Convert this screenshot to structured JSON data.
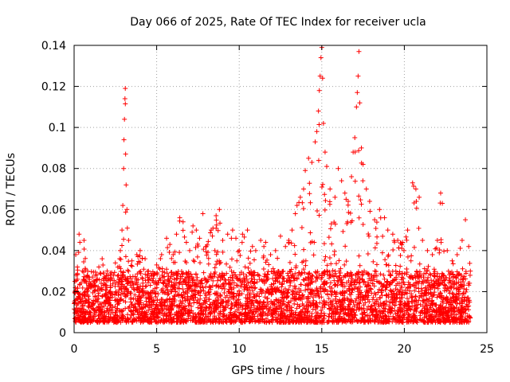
{
  "chart_data": {
    "type": "scatter",
    "title": "Day 066 of 2025, Rate Of TEC Index for receiver ucla",
    "xlabel": "GPS time / hours",
    "ylabel": "ROTI / TECUs",
    "xlim": [
      0,
      25
    ],
    "ylim": [
      0,
      0.14
    ],
    "xticks": [
      0,
      5,
      10,
      15,
      20,
      25
    ],
    "xtick_labels": [
      "0",
      "5",
      "10",
      "15",
      "20",
      "25"
    ],
    "yticks": [
      0,
      0.02,
      0.04,
      0.06,
      0.08,
      0.1,
      0.12,
      0.14
    ],
    "ytick_labels": [
      "0",
      "0.02",
      "0.04",
      "0.06",
      "0.08",
      "0.1",
      "0.12",
      "0.14"
    ],
    "grid": true,
    "marker": "+",
    "color": "#ff0000",
    "series": [
      {
        "name": "ROTI",
        "points": [
          [
            0.05,
            0.025
          ],
          [
            0.1,
            0.038
          ],
          [
            0.2,
            0.032
          ],
          [
            0.3,
            0.048
          ],
          [
            0.35,
            0.044
          ],
          [
            0.5,
            0.03
          ],
          [
            0.6,
            0.045
          ],
          [
            0.8,
            0.028
          ],
          [
            1.0,
            0.022
          ],
          [
            1.2,
            0.025
          ],
          [
            1.5,
            0.032
          ],
          [
            1.7,
            0.036
          ],
          [
            2.0,
            0.03
          ],
          [
            2.2,
            0.028
          ],
          [
            2.5,
            0.034
          ],
          [
            2.8,
            0.04
          ],
          [
            2.9,
            0.05
          ],
          [
            2.95,
            0.062
          ],
          [
            3.0,
            0.08
          ],
          [
            3.02,
            0.094
          ],
          [
            3.05,
            0.104
          ],
          [
            3.08,
            0.114
          ],
          [
            3.1,
            0.119
          ],
          [
            3.12,
            0.087
          ],
          [
            3.15,
            0.072
          ],
          [
            3.2,
            0.06
          ],
          [
            3.3,
            0.045
          ],
          [
            3.5,
            0.035
          ],
          [
            3.8,
            0.038
          ],
          [
            4.0,
            0.04
          ],
          [
            4.3,
            0.036
          ],
          [
            4.5,
            0.03
          ],
          [
            4.8,
            0.028
          ],
          [
            5.0,
            0.033
          ],
          [
            5.3,
            0.038
          ],
          [
            5.6,
            0.046
          ],
          [
            5.8,
            0.043
          ],
          [
            6.0,
            0.038
          ],
          [
            6.2,
            0.048
          ],
          [
            6.4,
            0.056
          ],
          [
            6.6,
            0.054
          ],
          [
            6.8,
            0.044
          ],
          [
            7.0,
            0.04
          ],
          [
            7.2,
            0.052
          ],
          [
            7.4,
            0.05
          ],
          [
            7.6,
            0.046
          ],
          [
            7.8,
            0.058
          ],
          [
            8.0,
            0.042
          ],
          [
            8.3,
            0.05
          ],
          [
            8.6,
            0.057
          ],
          [
            8.8,
            0.06
          ],
          [
            9.0,
            0.045
          ],
          [
            9.3,
            0.048
          ],
          [
            9.6,
            0.05
          ],
          [
            9.8,
            0.046
          ],
          [
            10.0,
            0.04
          ],
          [
            10.2,
            0.048
          ],
          [
            10.5,
            0.05
          ],
          [
            10.8,
            0.042
          ],
          [
            11.0,
            0.04
          ],
          [
            11.3,
            0.045
          ],
          [
            11.6,
            0.044
          ],
          [
            11.9,
            0.038
          ],
          [
            12.2,
            0.04
          ],
          [
            12.5,
            0.047
          ],
          [
            12.8,
            0.042
          ],
          [
            13.0,
            0.045
          ],
          [
            13.2,
            0.05
          ],
          [
            13.4,
            0.058
          ],
          [
            13.5,
            0.062
          ],
          [
            13.7,
            0.066
          ],
          [
            13.9,
            0.07
          ],
          [
            14.0,
            0.079
          ],
          [
            14.2,
            0.085
          ],
          [
            14.4,
            0.083
          ],
          [
            14.6,
            0.093
          ],
          [
            14.7,
            0.098
          ],
          [
            14.8,
            0.108
          ],
          [
            14.85,
            0.118
          ],
          [
            14.9,
            0.125
          ],
          [
            14.95,
            0.134
          ],
          [
            15.0,
            0.139
          ],
          [
            15.05,
            0.124
          ],
          [
            15.1,
            0.102
          ],
          [
            15.2,
            0.088
          ],
          [
            15.3,
            0.081
          ],
          [
            15.5,
            0.07
          ],
          [
            15.8,
            0.066
          ],
          [
            16.0,
            0.08
          ],
          [
            16.2,
            0.074
          ],
          [
            16.4,
            0.068
          ],
          [
            16.6,
            0.064
          ],
          [
            16.8,
            0.076
          ],
          [
            16.9,
            0.088
          ],
          [
            17.0,
            0.095
          ],
          [
            17.1,
            0.11
          ],
          [
            17.15,
            0.117
          ],
          [
            17.2,
            0.125
          ],
          [
            17.25,
            0.137
          ],
          [
            17.3,
            0.112
          ],
          [
            17.4,
            0.09
          ],
          [
            17.5,
            0.082
          ],
          [
            17.7,
            0.07
          ],
          [
            17.9,
            0.064
          ],
          [
            18.2,
            0.055
          ],
          [
            18.5,
            0.06
          ],
          [
            18.8,
            0.056
          ],
          [
            19.0,
            0.05
          ],
          [
            19.3,
            0.048
          ],
          [
            19.6,
            0.045
          ],
          [
            19.9,
            0.044
          ],
          [
            20.2,
            0.05
          ],
          [
            20.5,
            0.073
          ],
          [
            20.7,
            0.07
          ],
          [
            20.9,
            0.066
          ],
          [
            21.1,
            0.045
          ],
          [
            21.4,
            0.04
          ],
          [
            21.7,
            0.038
          ],
          [
            22.0,
            0.045
          ],
          [
            22.2,
            0.068
          ],
          [
            22.3,
            0.063
          ],
          [
            22.6,
            0.04
          ],
          [
            22.9,
            0.035
          ],
          [
            23.2,
            0.038
          ],
          [
            23.5,
            0.045
          ],
          [
            23.7,
            0.055
          ],
          [
            23.9,
            0.042
          ],
          [
            24.0,
            0.03
          ]
        ],
        "baseline_band": [
          0.005,
          0.03
        ]
      }
    ]
  }
}
